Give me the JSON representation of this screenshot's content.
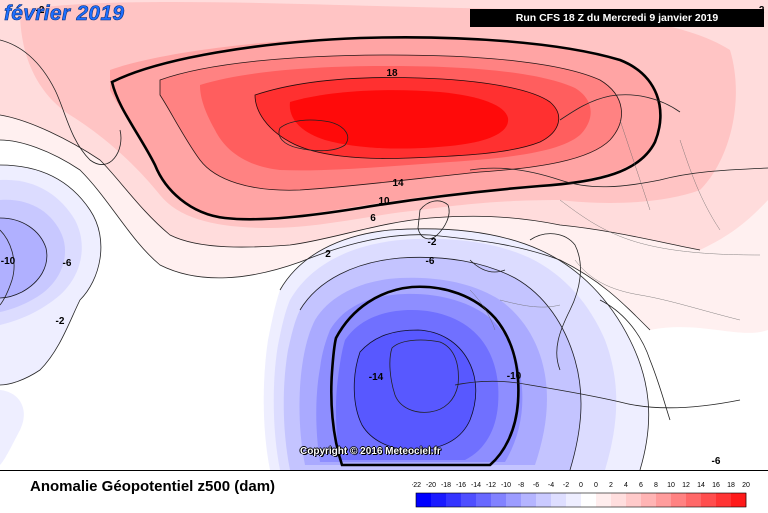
{
  "title": "février 2019",
  "run_info": "Run CFS 18 Z du Mercredi 9 janvier 2019",
  "subtitle": "Anomalie Géopotentiel z500 (dam)",
  "copyright": "Copyright © 2016 Meteociel.fr",
  "contour_labels": [
    "18",
    "14",
    "10",
    "6",
    "2",
    "-2",
    "-6",
    "-10",
    "-14",
    "-10",
    "-6",
    "-2",
    "-2",
    "-2",
    "-6"
  ],
  "legend": {
    "ticks": [
      "-22",
      "-20",
      "-18",
      "-16",
      "-14",
      "-12",
      "-10",
      "-8",
      "-6",
      "-4",
      "-2",
      "0",
      "0",
      "2",
      "4",
      "6",
      "8",
      "10",
      "12",
      "14",
      "16",
      "18",
      "20"
    ],
    "colors": [
      "#0000ff",
      "#1a1aff",
      "#3434ff",
      "#4e4eff",
      "#6868ff",
      "#8282ff",
      "#9c9cff",
      "#b4b4ff",
      "#cacaff",
      "#dedeff",
      "#eeeeff",
      "#ffffff",
      "#ffeeee",
      "#ffdede",
      "#ffcaca",
      "#ffb4b4",
      "#ff9c9c",
      "#ff8282",
      "#ff6868",
      "#ff4e4e",
      "#ff3434",
      "#ff1a1a"
    ]
  }
}
